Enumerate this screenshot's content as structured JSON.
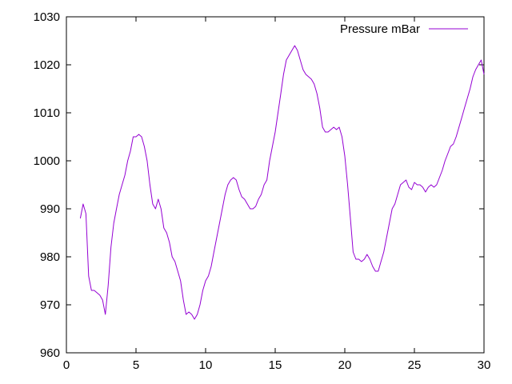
{
  "chart_data": {
    "type": "line",
    "title": "",
    "xlabel": "",
    "ylabel": "",
    "xlim": [
      0,
      30
    ],
    "ylim": [
      960,
      1030
    ],
    "xticks": [
      0,
      5,
      10,
      15,
      20,
      25,
      30
    ],
    "yticks": [
      960,
      970,
      980,
      990,
      1000,
      1010,
      1020,
      1030
    ],
    "grid": false,
    "legend_position": "top-right",
    "series": [
      {
        "name": "Pressure mBar",
        "color": "#9400d3",
        "points": [
          [
            1.0,
            988
          ],
          [
            1.2,
            991
          ],
          [
            1.4,
            989
          ],
          [
            1.6,
            976
          ],
          [
            1.8,
            973
          ],
          [
            2.0,
            973
          ],
          [
            2.2,
            972.5
          ],
          [
            2.4,
            972
          ],
          [
            2.6,
            971
          ],
          [
            2.8,
            968
          ],
          [
            3.0,
            974
          ],
          [
            3.2,
            982
          ],
          [
            3.4,
            987
          ],
          [
            3.6,
            990
          ],
          [
            3.8,
            993
          ],
          [
            4.0,
            995
          ],
          [
            4.2,
            997
          ],
          [
            4.4,
            1000
          ],
          [
            4.6,
            1002
          ],
          [
            4.8,
            1005
          ],
          [
            5.0,
            1005
          ],
          [
            5.2,
            1005.5
          ],
          [
            5.4,
            1005
          ],
          [
            5.6,
            1003
          ],
          [
            5.8,
            1000
          ],
          [
            6.0,
            995
          ],
          [
            6.2,
            991
          ],
          [
            6.4,
            990
          ],
          [
            6.6,
            992
          ],
          [
            6.8,
            990
          ],
          [
            7.0,
            986
          ],
          [
            7.2,
            985
          ],
          [
            7.4,
            983
          ],
          [
            7.6,
            980
          ],
          [
            7.8,
            979
          ],
          [
            8.0,
            977
          ],
          [
            8.2,
            975
          ],
          [
            8.4,
            971
          ],
          [
            8.6,
            968
          ],
          [
            8.8,
            968.5
          ],
          [
            9.0,
            968
          ],
          [
            9.2,
            967
          ],
          [
            9.4,
            968
          ],
          [
            9.6,
            970
          ],
          [
            9.8,
            973
          ],
          [
            10.0,
            975
          ],
          [
            10.2,
            976
          ],
          [
            10.4,
            978
          ],
          [
            10.6,
            981
          ],
          [
            10.8,
            984
          ],
          [
            11.0,
            987
          ],
          [
            11.2,
            990
          ],
          [
            11.4,
            993
          ],
          [
            11.6,
            995
          ],
          [
            11.8,
            996
          ],
          [
            12.0,
            996.5
          ],
          [
            12.2,
            996
          ],
          [
            12.4,
            994
          ],
          [
            12.6,
            992.5
          ],
          [
            12.8,
            992
          ],
          [
            13.0,
            991
          ],
          [
            13.2,
            990
          ],
          [
            13.4,
            990
          ],
          [
            13.6,
            990.5
          ],
          [
            13.8,
            992
          ],
          [
            14.0,
            993
          ],
          [
            14.2,
            995
          ],
          [
            14.4,
            996
          ],
          [
            14.6,
            1000
          ],
          [
            14.8,
            1003
          ],
          [
            15.0,
            1006
          ],
          [
            15.2,
            1010
          ],
          [
            15.4,
            1014
          ],
          [
            15.6,
            1018
          ],
          [
            15.8,
            1021
          ],
          [
            16.0,
            1022
          ],
          [
            16.2,
            1023
          ],
          [
            16.4,
            1024
          ],
          [
            16.6,
            1023
          ],
          [
            16.8,
            1021
          ],
          [
            17.0,
            1019
          ],
          [
            17.2,
            1018
          ],
          [
            17.4,
            1017.5
          ],
          [
            17.6,
            1017
          ],
          [
            17.8,
            1016
          ],
          [
            18.0,
            1014
          ],
          [
            18.2,
            1011
          ],
          [
            18.4,
            1007
          ],
          [
            18.6,
            1006
          ],
          [
            18.8,
            1006
          ],
          [
            19.0,
            1006.5
          ],
          [
            19.2,
            1007
          ],
          [
            19.4,
            1006.5
          ],
          [
            19.6,
            1007
          ],
          [
            19.8,
            1005
          ],
          [
            20.0,
            1001
          ],
          [
            20.2,
            995
          ],
          [
            20.4,
            988
          ],
          [
            20.6,
            981
          ],
          [
            20.8,
            979.5
          ],
          [
            21.0,
            979.5
          ],
          [
            21.2,
            979
          ],
          [
            21.4,
            979.5
          ],
          [
            21.6,
            980.5
          ],
          [
            21.8,
            979.5
          ],
          [
            22.0,
            978
          ],
          [
            22.2,
            977
          ],
          [
            22.4,
            977
          ],
          [
            22.6,
            979
          ],
          [
            22.8,
            981
          ],
          [
            23.0,
            984
          ],
          [
            23.2,
            987
          ],
          [
            23.4,
            990
          ],
          [
            23.6,
            991
          ],
          [
            23.8,
            993
          ],
          [
            24.0,
            995
          ],
          [
            24.2,
            995.5
          ],
          [
            24.4,
            996
          ],
          [
            24.6,
            994.5
          ],
          [
            24.8,
            994
          ],
          [
            25.0,
            995.5
          ],
          [
            25.2,
            995
          ],
          [
            25.4,
            995
          ],
          [
            25.6,
            994.5
          ],
          [
            25.8,
            993.5
          ],
          [
            26.0,
            994.5
          ],
          [
            26.2,
            995
          ],
          [
            26.4,
            994.5
          ],
          [
            26.6,
            995
          ],
          [
            26.8,
            996.5
          ],
          [
            27.0,
            998
          ],
          [
            27.2,
            1000
          ],
          [
            27.4,
            1001.5
          ],
          [
            27.6,
            1003
          ],
          [
            27.8,
            1003.5
          ],
          [
            28.0,
            1005
          ],
          [
            28.2,
            1007
          ],
          [
            28.4,
            1009
          ],
          [
            28.6,
            1011
          ],
          [
            28.8,
            1013
          ],
          [
            29.0,
            1015
          ],
          [
            29.2,
            1017.5
          ],
          [
            29.4,
            1019
          ],
          [
            29.6,
            1020
          ],
          [
            29.8,
            1021
          ],
          [
            30.0,
            1018
          ]
        ]
      }
    ]
  }
}
